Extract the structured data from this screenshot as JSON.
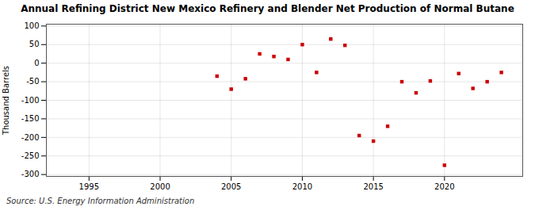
{
  "chart_data": {
    "type": "scatter",
    "title": "Annual Refining District New Mexico Refinery and Blender Net Production of Normal Butane",
    "ylabel": "Thousand Barrels",
    "annotations": [
      "Source: U.S. Energy Information Administration"
    ],
    "x": [
      2004,
      2005,
      2006,
      2007,
      2008,
      2009,
      2010,
      2011,
      2012,
      2013,
      2014,
      2015,
      2016,
      2017,
      2018,
      2019,
      2020,
      2021,
      2022,
      2023,
      2024
    ],
    "values": [
      -35,
      -70,
      -42,
      25,
      18,
      10,
      50,
      -25,
      65,
      48,
      -195,
      -210,
      -170,
      -50,
      -80,
      -48,
      -275,
      -28,
      -68,
      -50,
      -25
    ],
    "color": "#cc0000",
    "marker": "square",
    "xlim": [
      1992,
      2025.5
    ],
    "ylim": [
      -305,
      105
    ],
    "xticks": [
      1995,
      2000,
      2005,
      2010,
      2015,
      2020
    ],
    "yticks": [
      100,
      50,
      0,
      -50,
      -100,
      -150,
      -200,
      -250,
      -300
    ],
    "grid": true
  }
}
